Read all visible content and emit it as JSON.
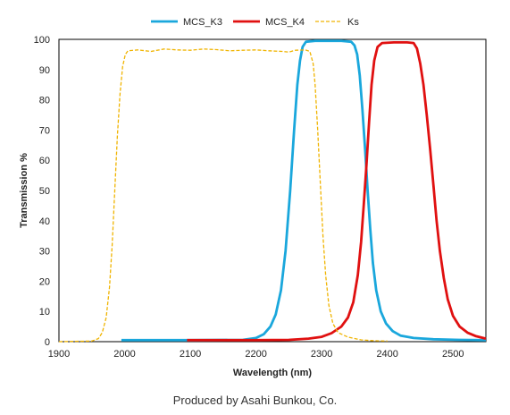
{
  "chart_data": {
    "type": "line",
    "xlabel": "Wavelength (nm)",
    "ylabel": "Transmission  %",
    "xlim": [
      1900,
      2550
    ],
    "ylim": [
      0,
      100
    ],
    "x_ticks": [
      1900,
      2000,
      2100,
      2200,
      2300,
      2400,
      2500
    ],
    "y_ticks": [
      0,
      10,
      20,
      30,
      40,
      50,
      60,
      70,
      80,
      90,
      100
    ],
    "grid": false,
    "legend_position": "top-center",
    "series": [
      {
        "name": "MCS_K3",
        "color": "#1aa7dc",
        "dash": "solid",
        "points": [
          [
            1995,
            0.5
          ],
          [
            2100,
            0.5
          ],
          [
            2180,
            0.6
          ],
          [
            2200,
            1.2
          ],
          [
            2212,
            2.5
          ],
          [
            2222,
            5
          ],
          [
            2230,
            9
          ],
          [
            2238,
            17
          ],
          [
            2245,
            30
          ],
          [
            2252,
            50
          ],
          [
            2258,
            70
          ],
          [
            2263,
            85
          ],
          [
            2267,
            93
          ],
          [
            2271,
            97.5
          ],
          [
            2276,
            99.2
          ],
          [
            2290,
            99.5
          ],
          [
            2330,
            99.5
          ],
          [
            2345,
            99.2
          ],
          [
            2350,
            98
          ],
          [
            2354,
            95
          ],
          [
            2358,
            88
          ],
          [
            2362,
            77
          ],
          [
            2366,
            64
          ],
          [
            2370,
            50
          ],
          [
            2374,
            37
          ],
          [
            2378,
            26
          ],
          [
            2383,
            17
          ],
          [
            2390,
            10
          ],
          [
            2398,
            6
          ],
          [
            2408,
            3.5
          ],
          [
            2420,
            2
          ],
          [
            2440,
            1.2
          ],
          [
            2470,
            0.8
          ],
          [
            2510,
            0.6
          ],
          [
            2550,
            0.5
          ]
        ]
      },
      {
        "name": "MCS_K4",
        "color": "#e01010",
        "dash": "solid",
        "points": [
          [
            2095,
            0.5
          ],
          [
            2200,
            0.5
          ],
          [
            2250,
            0.6
          ],
          [
            2280,
            1
          ],
          [
            2300,
            1.6
          ],
          [
            2315,
            2.8
          ],
          [
            2330,
            5
          ],
          [
            2340,
            8
          ],
          [
            2348,
            13
          ],
          [
            2355,
            22
          ],
          [
            2360,
            33
          ],
          [
            2364,
            45
          ],
          [
            2368,
            58
          ],
          [
            2372,
            72
          ],
          [
            2376,
            85
          ],
          [
            2380,
            93
          ],
          [
            2385,
            97.5
          ],
          [
            2392,
            98.8
          ],
          [
            2410,
            99
          ],
          [
            2430,
            99
          ],
          [
            2440,
            98.8
          ],
          [
            2445,
            97
          ],
          [
            2450,
            92
          ],
          [
            2455,
            85
          ],
          [
            2460,
            75
          ],
          [
            2465,
            64
          ],
          [
            2470,
            52
          ],
          [
            2475,
            40
          ],
          [
            2480,
            30
          ],
          [
            2486,
            21
          ],
          [
            2492,
            14
          ],
          [
            2500,
            8.5
          ],
          [
            2510,
            5
          ],
          [
            2522,
            3
          ],
          [
            2535,
            1.8
          ],
          [
            2550,
            1
          ]
        ]
      },
      {
        "name": "Ks",
        "color": "#f0b400",
        "dash": "dashed",
        "points": [
          [
            1900,
            0
          ],
          [
            1950,
            0.2
          ],
          [
            1960,
            1
          ],
          [
            1966,
            3
          ],
          [
            1972,
            8
          ],
          [
            1977,
            18
          ],
          [
            1981,
            32
          ],
          [
            1985,
            50
          ],
          [
            1989,
            68
          ],
          [
            1993,
            82
          ],
          [
            1997,
            91
          ],
          [
            2001,
            95
          ],
          [
            2005,
            96.2
          ],
          [
            2020,
            96.5
          ],
          [
            2040,
            96
          ],
          [
            2060,
            96.8
          ],
          [
            2080,
            96.5
          ],
          [
            2100,
            96.4
          ],
          [
            2120,
            96.8
          ],
          [
            2140,
            96.6
          ],
          [
            2160,
            96.2
          ],
          [
            2180,
            96.4
          ],
          [
            2200,
            96.5
          ],
          [
            2220,
            96.2
          ],
          [
            2240,
            96
          ],
          [
            2250,
            95.8
          ],
          [
            2260,
            96.4
          ],
          [
            2275,
            96.5
          ],
          [
            2282,
            96
          ],
          [
            2287,
            92
          ],
          [
            2290,
            85
          ],
          [
            2294,
            70
          ],
          [
            2298,
            52
          ],
          [
            2302,
            35
          ],
          [
            2306,
            22
          ],
          [
            2311,
            12
          ],
          [
            2317,
            6
          ],
          [
            2325,
            3
          ],
          [
            2340,
            1.5
          ],
          [
            2360,
            0.6
          ],
          [
            2380,
            0.3
          ],
          [
            2400,
            0.2
          ]
        ]
      }
    ]
  },
  "footer": {
    "text": "Produced by Asahi Bunkou, Co."
  }
}
